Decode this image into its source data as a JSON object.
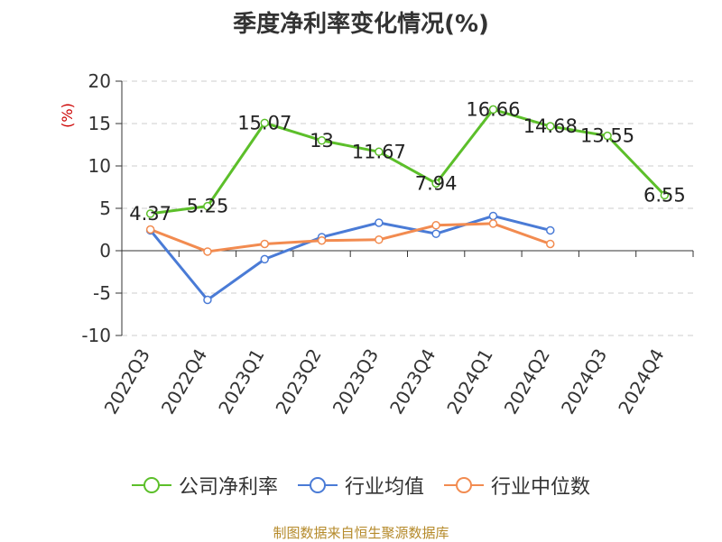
{
  "title": "季度净利率变化情况(%)",
  "source": "制图数据来自恒生聚源数据库",
  "colors": {
    "company": "#5cbf2a",
    "industry_avg": "#4a7bd6",
    "industry_median": "#f28b50",
    "source_text": "#b58a2a"
  },
  "chart_data": {
    "type": "line",
    "title": "季度净利率变化情况(%)",
    "ylabel": "(%)",
    "ylim": [
      -10,
      20
    ],
    "yticks": [
      -10,
      -5,
      0,
      5,
      10,
      15,
      20
    ],
    "grid": true,
    "legend_position": "bottom",
    "categories": [
      "2022Q3",
      "2022Q4",
      "2023Q1",
      "2023Q2",
      "2023Q3",
      "2023Q4",
      "2024Q1",
      "2024Q2",
      "2024Q3",
      "2024Q4"
    ],
    "series": [
      {
        "name": "公司净利率",
        "values": [
          4.37,
          5.25,
          15.07,
          13,
          11.67,
          7.94,
          16.66,
          14.68,
          13.55,
          6.55
        ],
        "labels": [
          "4.37",
          "5.25",
          "15.07",
          "13",
          "11.67",
          "7.94",
          "16.66",
          "14.68",
          "13.55",
          "6.55"
        ]
      },
      {
        "name": "行业均值",
        "values": [
          2.4,
          -5.8,
          -1.0,
          1.6,
          3.3,
          2.0,
          4.1,
          2.4,
          null,
          null
        ]
      },
      {
        "name": "行业中位数",
        "values": [
          2.5,
          -0.1,
          0.8,
          1.2,
          1.3,
          3.0,
          3.2,
          0.8,
          null,
          null
        ]
      }
    ]
  }
}
